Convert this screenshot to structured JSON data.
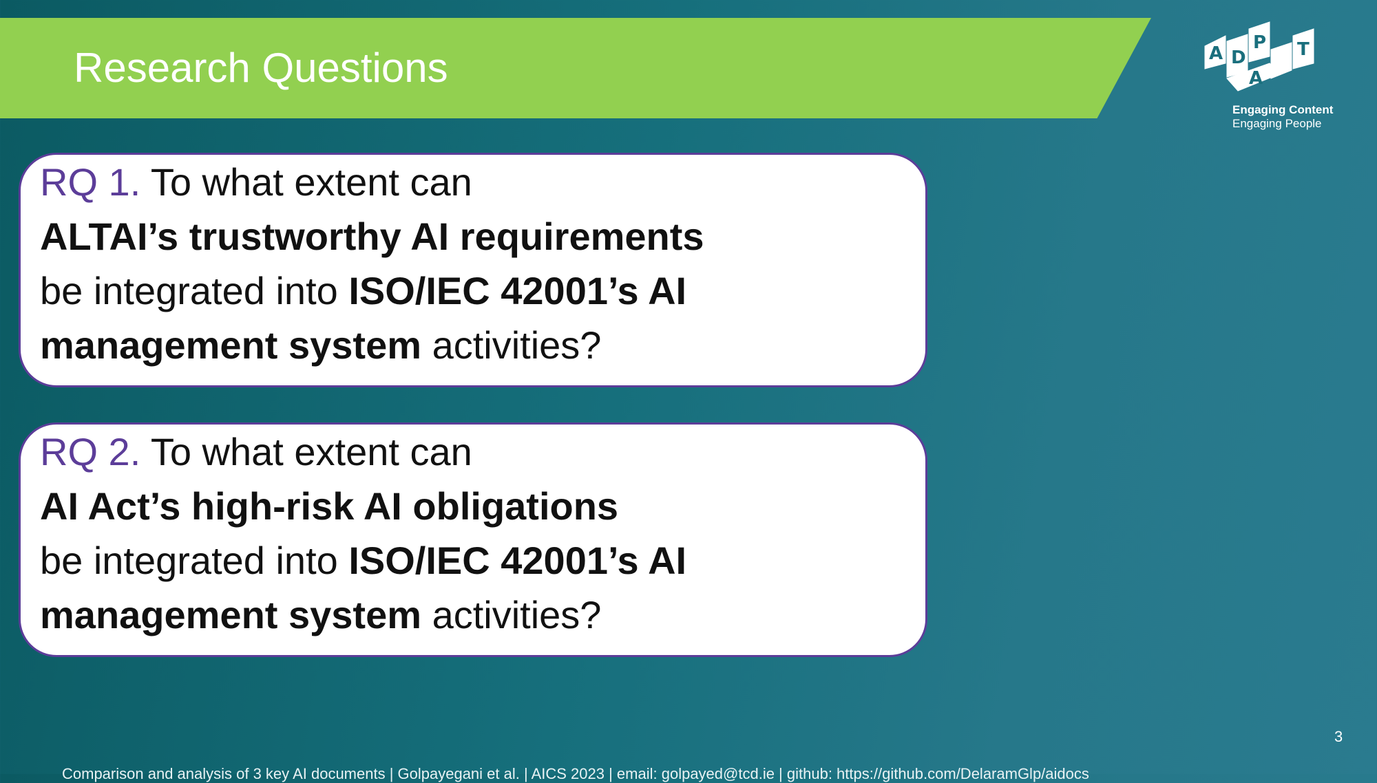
{
  "slide": {
    "title": "Research Questions",
    "page_number": "3",
    "footer": "Comparison and analysis of 3 key AI documents | Golpayegani et al. | AICS 2023 | email: golpayed@tcd.ie | github: https://github.com/DelaramGlp/aidocs"
  },
  "logo": {
    "letters": [
      "A",
      "D",
      "P",
      "A",
      "T"
    ],
    "tagline1": "Engaging Content",
    "tagline2": "Engaging People"
  },
  "rq1": {
    "label": "RQ 1.",
    "line1": "To what extent can",
    "line2": "ALTAI’s trustworthy AI requirements",
    "line3_a": "be integrated into ",
    "line3_b": "ISO/IEC 42001’s AI",
    "line4_a": "management system",
    "line4_b": " activities?"
  },
  "rq2": {
    "label": "RQ 2.",
    "line1": "To what extent can",
    "line2": "AI Act’s high-risk AI obligations",
    "line3_a": "be integrated into ",
    "line3_b": "ISO/IEC 42001’s AI",
    "line4_a": "management system",
    "line4_b": " activities?"
  },
  "colors": {
    "accent_green": "#92d050",
    "accent_purple": "#5c3d99",
    "background_teal": "#1a6f7d"
  }
}
